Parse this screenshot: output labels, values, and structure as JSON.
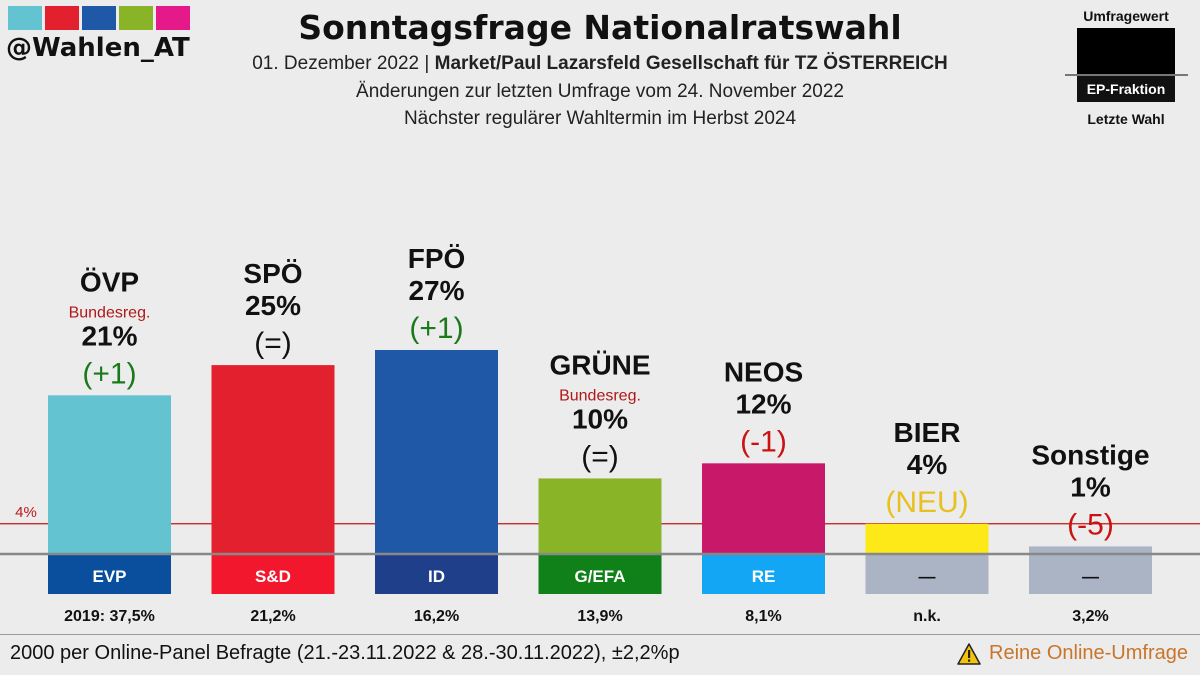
{
  "header": {
    "handle": "@Wahlen_AT",
    "logo_colors": [
      "#63c3d1",
      "#e3202e",
      "#2058a8",
      "#8ab428",
      "#e5198a"
    ],
    "title": "Sonntagsfrage Nationalratswahl",
    "date_text": "01. Dezember 2022 |",
    "pollster": "Market/Paul Lazarsfeld Gesellschaft für TZ ÖSTERREICH",
    "change_note": "Änderungen zur letzten Umfrage vom 24. November 2022",
    "next_election": "Nächster regulärer Wahltermin im Herbst 2024"
  },
  "legend": {
    "top_label": "Umfragewert",
    "middle_label": "EP-Fraktion",
    "bottom_label": "Letzte Wahl"
  },
  "chart_data": {
    "type": "bar",
    "categories": [
      "ÖVP",
      "SPÖ",
      "FPÖ",
      "GRÜNE",
      "NEOS",
      "BIER",
      "Sonstige"
    ],
    "values": [
      21,
      25,
      27,
      10,
      12,
      4,
      1
    ],
    "value_labels": [
      "21%",
      "25%",
      "27%",
      "10%",
      "12%",
      "4%",
      "1%"
    ],
    "changes": [
      "(+1)",
      "(=)",
      "(+1)",
      "(=)",
      "(-1)",
      "(NEU)",
      "(-5)"
    ],
    "change_colors": [
      "#1a7a1a",
      "#111111",
      "#1a7a1a",
      "#111111",
      "#cc1111",
      "#e8c020",
      "#cc1111"
    ],
    "government_note": [
      "Bundesreg.",
      "",
      "",
      "Bundesreg.",
      "",
      "",
      ""
    ],
    "bar_colors": [
      "#63c3d1",
      "#e3202e",
      "#2058a8",
      "#8ab428",
      "#c8186a",
      "#fde818",
      "#aab4c4"
    ],
    "ep_groups": [
      "EVP",
      "S&D",
      "ID",
      "G/EFA",
      "RE",
      "—",
      "—"
    ],
    "ep_colors": [
      "#0a4f9e",
      "#f2172c",
      "#1f3f8a",
      "#108018",
      "#12a6f4",
      "#aab4c4",
      "#aab4c4"
    ],
    "ep_text_colors": [
      "#ffffff",
      "#ffffff",
      "#ffffff",
      "#ffffff",
      "#ffffff",
      "#111111",
      "#111111"
    ],
    "last_election": [
      "2019: 37,5%",
      "21,2%",
      "16,2%",
      "13,9%",
      "8,1%",
      "n.k.",
      "3,2%"
    ],
    "threshold": {
      "value": 4,
      "label": "4%",
      "color": "#c01818"
    },
    "ylim": [
      0,
      27
    ]
  },
  "footer": {
    "method": "2000 per Online-Panel Befragte (21.-23.11.2022 & 28.-30.11.2022), ±2,2%p",
    "warning": "Reine Online-Umfrage"
  }
}
